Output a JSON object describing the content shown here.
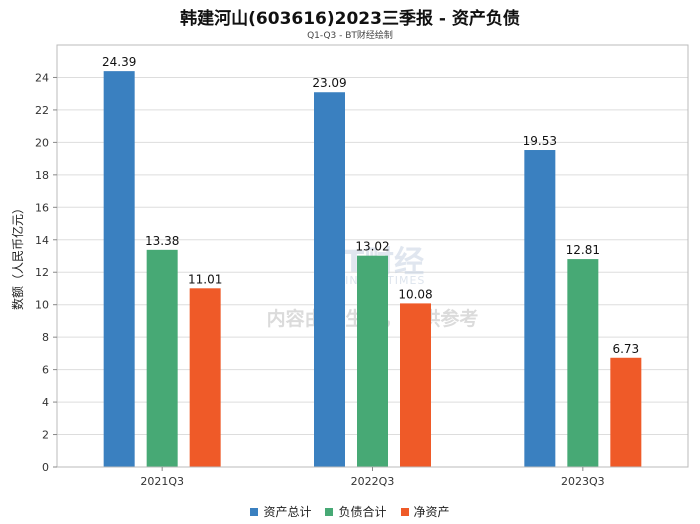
{
  "title": "韩建河山(603616)2023三季报 - 资产负债",
  "subtitle": "Q1-Q3 - BT财经绘制",
  "watermark": {
    "brand_mark": "BT财经",
    "brand_sub": "BUSINESS TIMES",
    "notice": "内容由AI生成，仅供参考"
  },
  "colors": {
    "资产总计": "#3a80c0",
    "负债合计": "#47a975",
    "净资产": "#ef5a28"
  },
  "chart_data": {
    "type": "bar",
    "title": "韩建河山(603616)2023三季报 - 资产负债",
    "subtitle": "Q1-Q3 - BT财经绘制",
    "xlabel": "",
    "ylabel": "数额（人民币亿元）",
    "ylim": [
      0,
      26
    ],
    "yticks": [
      0,
      2,
      4,
      6,
      8,
      10,
      12,
      14,
      16,
      18,
      20,
      22,
      24
    ],
    "grid": true,
    "legend_position": "bottom-center",
    "categories": [
      "2021Q3",
      "2022Q3",
      "2023Q3"
    ],
    "series": [
      {
        "name": "资产总计",
        "values": [
          24.39,
          23.09,
          19.53
        ]
      },
      {
        "name": "负债合计",
        "values": [
          13.38,
          13.02,
          12.81
        ]
      },
      {
        "name": "净资产",
        "values": [
          11.01,
          10.08,
          6.73
        ]
      }
    ]
  }
}
